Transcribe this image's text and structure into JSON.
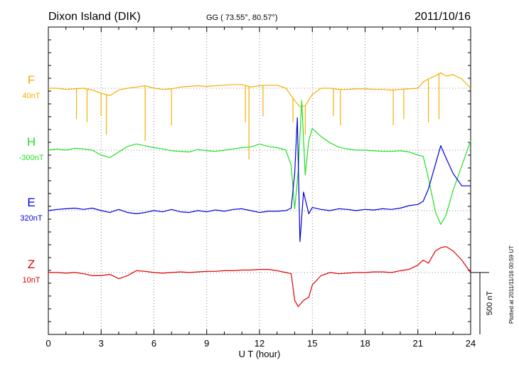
{
  "header": {
    "station": "Dixon Island (DIK)",
    "coords": "GG ( 73.55°,  80.57°)",
    "date": "2011/10/16"
  },
  "side_note": "Plotted at 2011/11/16 00:59 UT",
  "scale_bar": {
    "label": "500 nT",
    "value": 500
  },
  "colors": {
    "F": "#f5b000",
    "H": "#22e022",
    "E": "#0000dd",
    "Z": "#e00000"
  },
  "chart_data": {
    "type": "line",
    "xlabel": "U T (hour)",
    "xlim": [
      0,
      24
    ],
    "x_ticks": [
      0,
      3,
      6,
      9,
      12,
      15,
      18,
      21,
      24
    ],
    "x_tick_labels": [
      "0",
      "3",
      "6",
      "9",
      "12",
      "15",
      "18",
      "21",
      "24"
    ],
    "grid": true,
    "units": "nT",
    "series": [
      {
        "name": "F",
        "offset_label": "40nT",
        "color": "#f5b000",
        "x": [
          0,
          0.5,
          1,
          1.5,
          2,
          2.5,
          3,
          3.5,
          4,
          4.5,
          5,
          5.5,
          6,
          6.5,
          7,
          7.5,
          8,
          8.5,
          9,
          9.5,
          10,
          10.5,
          11,
          11.5,
          12,
          12.5,
          13,
          13.5,
          14,
          14.3,
          14.6,
          15,
          15.5,
          16,
          16.5,
          17,
          17.5,
          18,
          18.5,
          19,
          19.5,
          20,
          20.5,
          21,
          21.3,
          21.6,
          22,
          22.3,
          22.6,
          23,
          23.5,
          24
        ],
        "y": [
          0,
          0,
          -2,
          -1,
          0,
          -3,
          -8,
          -12,
          -3,
          0,
          2,
          4,
          0,
          -2,
          -1,
          2,
          3,
          4,
          3,
          4,
          5,
          6,
          6,
          2,
          4,
          5,
          5,
          0,
          -20,
          -30,
          -28,
          -10,
          0,
          0,
          -2,
          -2,
          -1,
          -1,
          -2,
          -2,
          -3,
          -2,
          -1,
          0,
          10,
          15,
          20,
          25,
          20,
          22,
          15,
          0
        ],
        "spikes": [
          {
            "x": 1.6,
            "y": -50
          },
          {
            "x": 2.2,
            "y": -55
          },
          {
            "x": 3.0,
            "y": -45
          },
          {
            "x": 3.3,
            "y": -75
          },
          {
            "x": 5.5,
            "y": -85
          },
          {
            "x": 7.0,
            "y": -60
          },
          {
            "x": 11.2,
            "y": -55
          },
          {
            "x": 11.4,
            "y": -115
          },
          {
            "x": 12.2,
            "y": -45
          },
          {
            "x": 13.9,
            "y": -55
          },
          {
            "x": 14.6,
            "y": -75
          },
          {
            "x": 16.2,
            "y": -45
          },
          {
            "x": 16.6,
            "y": -60
          },
          {
            "x": 19.6,
            "y": -60
          },
          {
            "x": 20.2,
            "y": -50
          },
          {
            "x": 21.6,
            "y": -55
          },
          {
            "x": 22.2,
            "y": -50
          }
        ]
      },
      {
        "name": "H",
        "offset_label": "-300nT",
        "color": "#22e022",
        "x": [
          0,
          0.5,
          1,
          1.5,
          2,
          2.5,
          3,
          3.5,
          4,
          4.5,
          5,
          5.5,
          6,
          6.5,
          7,
          7.5,
          8,
          8.5,
          9,
          9.5,
          10,
          10.5,
          11,
          11.5,
          12,
          12.5,
          13,
          13.5,
          13.8,
          14,
          14.2,
          14.4,
          14.6,
          14.8,
          15,
          15.5,
          16,
          16.5,
          17,
          17.5,
          18,
          18.5,
          19,
          19.5,
          20,
          20.5,
          21,
          21.3,
          21.6,
          22,
          22.3,
          22.6,
          23,
          23.5,
          24
        ],
        "y": [
          0,
          2,
          0,
          3,
          2,
          0,
          -8,
          -12,
          -3,
          6,
          10,
          7,
          4,
          2,
          -1,
          -2,
          -3,
          1,
          -1,
          -2,
          0,
          2,
          4,
          5,
          10,
          6,
          4,
          0,
          -25,
          -95,
          -35,
          80,
          -40,
          15,
          35,
          22,
          12,
          5,
          2,
          0,
          0,
          -1,
          -2,
          -2,
          -1,
          -3,
          -8,
          -10,
          -45,
          -100,
          -120,
          -105,
          -65,
          -25,
          15
        ],
        "spikes": []
      },
      {
        "name": "E",
        "offset_label": "320nT",
        "color": "#0000dd",
        "x": [
          0,
          0.5,
          1,
          1.5,
          2,
          2.5,
          3,
          3.5,
          4,
          4.5,
          5,
          5.5,
          6,
          6.5,
          7,
          7.5,
          8,
          8.5,
          9,
          9.5,
          10,
          10.5,
          11,
          11.5,
          12,
          12.5,
          13,
          13.5,
          13.8,
          14,
          14.15,
          14.3,
          14.5,
          14.8,
          15,
          15.5,
          16,
          16.5,
          17,
          17.5,
          18,
          18.5,
          19,
          19.5,
          20,
          20.5,
          21,
          21.3,
          21.6,
          22,
          22.3,
          22.6,
          23,
          23.5,
          24
        ],
        "y": [
          0,
          2,
          3,
          4,
          2,
          4,
          0,
          -3,
          2,
          -3,
          -5,
          -3,
          0,
          -2,
          2,
          -2,
          -3,
          0,
          -2,
          1,
          -1,
          2,
          3,
          0,
          -3,
          -1,
          -1,
          0,
          4,
          60,
          150,
          -50,
          30,
          -5,
          5,
          2,
          0,
          3,
          2,
          0,
          2,
          1,
          3,
          2,
          4,
          8,
          10,
          15,
          35,
          75,
          105,
          85,
          60,
          40,
          40
        ],
        "spikes": []
      },
      {
        "name": "Z",
        "offset_label": "10nT",
        "color": "#e00000",
        "x": [
          0,
          0.5,
          1,
          1.5,
          2,
          2.5,
          3,
          3.5,
          4,
          4.5,
          5,
          5.5,
          6,
          6.5,
          7,
          7.5,
          8,
          8.5,
          9,
          9.5,
          10,
          10.5,
          11,
          11.5,
          12,
          12.5,
          13,
          13.5,
          13.8,
          14,
          14.2,
          14.5,
          14.8,
          15,
          15.5,
          16,
          16.5,
          17,
          17.5,
          18,
          18.5,
          19,
          19.5,
          20,
          20.5,
          21,
          21.3,
          21.6,
          22,
          22.3,
          22.6,
          23,
          23.5,
          24
        ],
        "y": [
          0,
          0,
          -1,
          0,
          -2,
          -5,
          -5,
          -3,
          -10,
          -5,
          3,
          2,
          0,
          -1,
          0,
          1,
          0,
          1,
          2,
          2,
          3,
          3,
          4,
          4,
          5,
          5,
          3,
          0,
          -2,
          -45,
          -55,
          -45,
          -40,
          -20,
          -5,
          0,
          -2,
          -1,
          0,
          0,
          1,
          1,
          0,
          3,
          5,
          12,
          20,
          15,
          35,
          40,
          42,
          35,
          20,
          0
        ],
        "spikes": []
      }
    ]
  }
}
